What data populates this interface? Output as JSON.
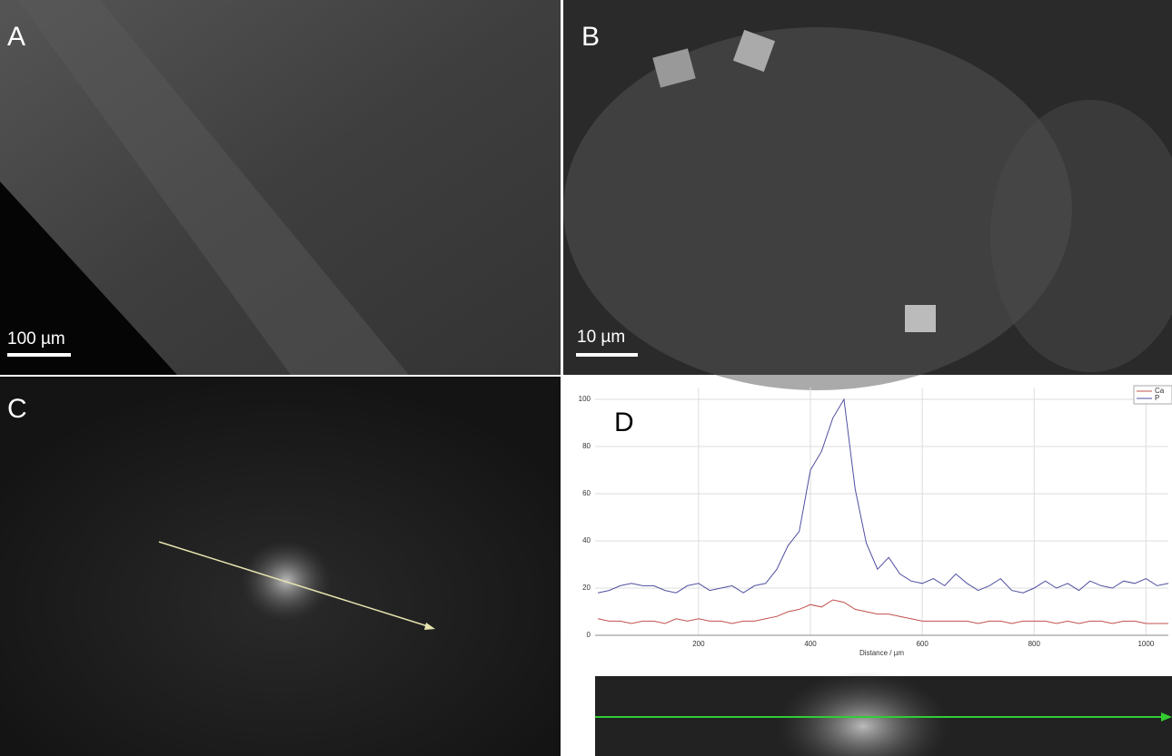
{
  "panels": [
    {
      "label": "A",
      "scale_bar": "100 µm"
    },
    {
      "label": "B",
      "scale_bar": "10 µm"
    },
    {
      "label": "C"
    },
    {
      "label": "D"
    }
  ],
  "chart_data": {
    "type": "line",
    "x_label": "Distance / µm",
    "x": [
      20,
      40,
      60,
      80,
      100,
      120,
      140,
      160,
      180,
      200,
      220,
      240,
      260,
      280,
      300,
      320,
      340,
      360,
      380,
      400,
      420,
      440,
      460,
      480,
      500,
      520,
      540,
      560,
      580,
      600,
      620,
      640,
      660,
      680,
      700,
      720,
      740,
      760,
      780,
      800,
      820,
      840,
      860,
      880,
      900,
      920,
      940,
      960,
      980,
      1000,
      1020,
      1040
    ],
    "series": [
      {
        "name": "Ca",
        "color": "#c0504d",
        "values": [
          7,
          6,
          6,
          5,
          6,
          6,
          5,
          7,
          6,
          7,
          6,
          6,
          5,
          6,
          6,
          7,
          8,
          10,
          11,
          13,
          12,
          15,
          14,
          11,
          10,
          9,
          9,
          8,
          7,
          6,
          6,
          6,
          6,
          6,
          5,
          6,
          6,
          5,
          6,
          6,
          6,
          5,
          6,
          5,
          6,
          6,
          5,
          6,
          6,
          5,
          5,
          5
        ]
      },
      {
        "name": "P",
        "color": "#4f4fa0",
        "values": [
          18,
          19,
          21,
          22,
          21,
          21,
          19,
          18,
          21,
          22,
          19,
          20,
          21,
          18,
          21,
          22,
          28,
          38,
          44,
          70,
          78,
          92,
          100,
          62,
          39,
          28,
          33,
          26,
          23,
          22,
          24,
          21,
          26,
          22,
          19,
          21,
          24,
          19,
          18,
          20,
          23,
          20,
          22,
          19,
          23,
          21,
          20,
          23,
          22,
          24,
          21,
          22
        ]
      }
    ],
    "xlim": [
      15,
      1040
    ],
    "ylim": [
      0,
      105
    ],
    "xticks": [
      200,
      400,
      600,
      800,
      1000
    ],
    "yticks": [
      0,
      20,
      40,
      60,
      80,
      100
    ],
    "grid": true,
    "legend": "upper right"
  }
}
